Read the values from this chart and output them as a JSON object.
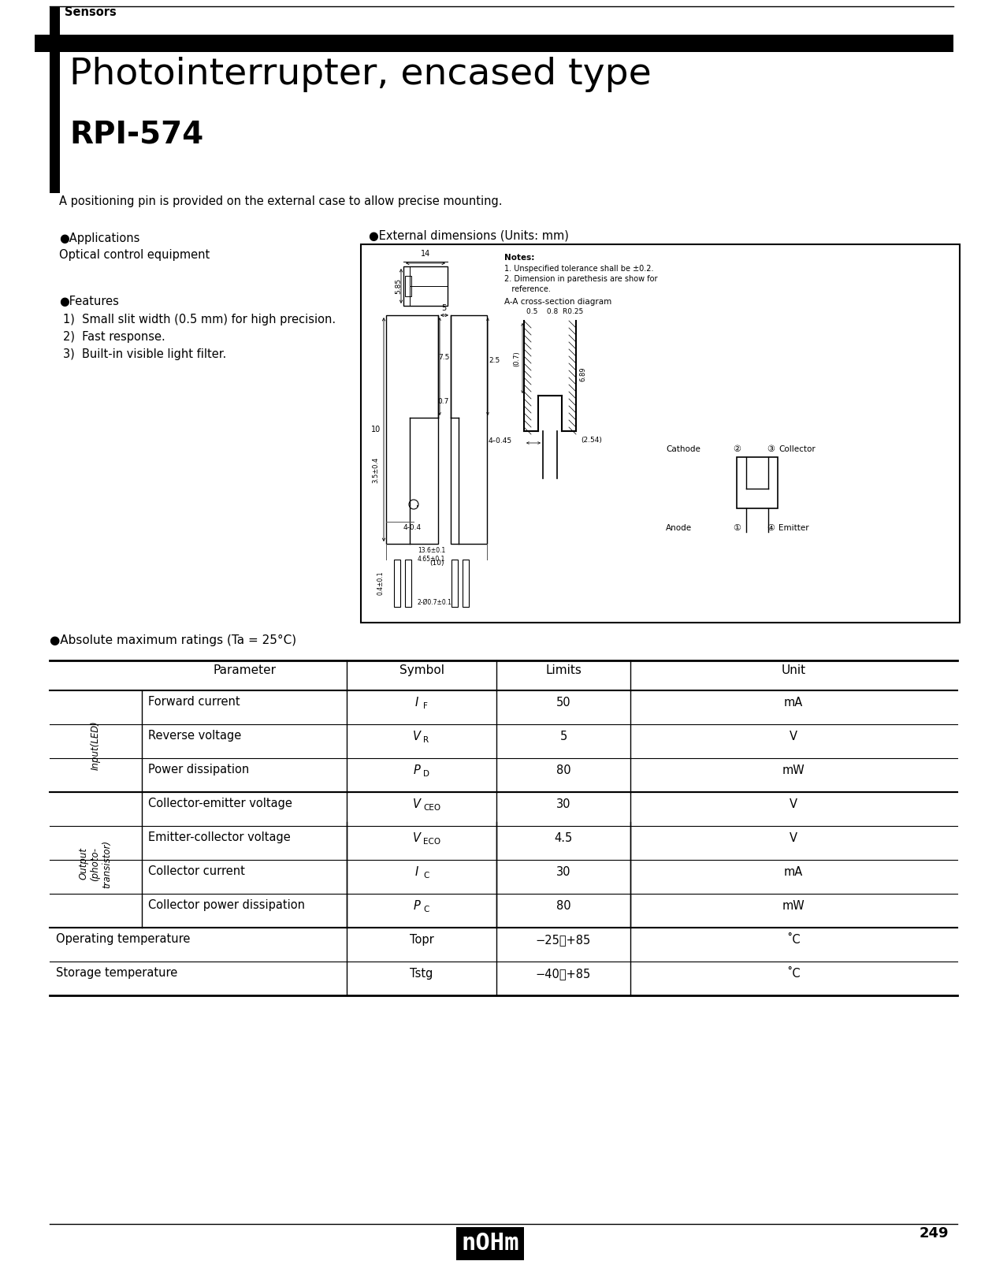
{
  "bg_color": "#ffffff",
  "section_label": "Sensors",
  "page_title": "Photointerrupter, encased type",
  "part_number": "RPI-574",
  "description": "A positioning pin is provided on the external case to allow precise mounting.",
  "applications_header": "●Applications",
  "applications_text": "Optical control equipment",
  "features_header": "●Features",
  "features": [
    "Small slit width (0.5 mm) for high precision.",
    "Fast response.",
    "Built-in visible light filter."
  ],
  "ext_dim_header": "●External dimensions (Units: mm)",
  "abs_max_header": "●Absolute maximum ratings (Ta = 25°C)",
  "table_col_headers": [
    "Parameter",
    "Symbol",
    "Limits",
    "Unit"
  ],
  "table_data": [
    {
      "group": "Input(LED)",
      "param": "Forward current",
      "sym_main": "I",
      "sym_sub": "F",
      "limits": "50",
      "unit": "mA"
    },
    {
      "group": "Input(LED)",
      "param": "Reverse voltage",
      "sym_main": "V",
      "sym_sub": "R",
      "limits": "5",
      "unit": "V"
    },
    {
      "group": "Input(LED)",
      "param": "Power dissipation",
      "sym_main": "P",
      "sym_sub": "D",
      "limits": "80",
      "unit": "mW"
    },
    {
      "group": "Output\n(photo-\ntransistor)",
      "param": "Collector-emitter voltage",
      "sym_main": "V",
      "sym_sub": "CEO",
      "limits": "30",
      "unit": "V"
    },
    {
      "group": "Output\n(photo-\ntransistor)",
      "param": "Emitter-collector voltage",
      "sym_main": "V",
      "sym_sub": "ECO",
      "limits": "4.5",
      "unit": "V"
    },
    {
      "group": "Output\n(photo-\ntransistor)",
      "param": "Collector current",
      "sym_main": "I",
      "sym_sub": "C",
      "limits": "30",
      "unit": "mA"
    },
    {
      "group": "Output\n(photo-\ntransistor)",
      "param": "Collector power dissipation",
      "sym_main": "P",
      "sym_sub": "C",
      "limits": "80",
      "unit": "mW"
    },
    {
      "group": "",
      "param": "Operating temperature",
      "sym_full": "Topr",
      "limits": "−25～+85",
      "unit": "˚C"
    },
    {
      "group": "",
      "param": "Storage temperature",
      "sym_full": "Tstg",
      "limits": "−40～+85",
      "unit": "˚C"
    }
  ],
  "page_number": "249",
  "notes_line1": "Notes:",
  "notes_line2": "1. Unspecified tolerance shall be ±0.2.",
  "notes_line3": "2. Dimension in parethesis are show for",
  "notes_line4": "   reference.",
  "cross_section_label": "A-A cross-section diagram",
  "cross_section_dim": "0.5    0.8  R0.25"
}
